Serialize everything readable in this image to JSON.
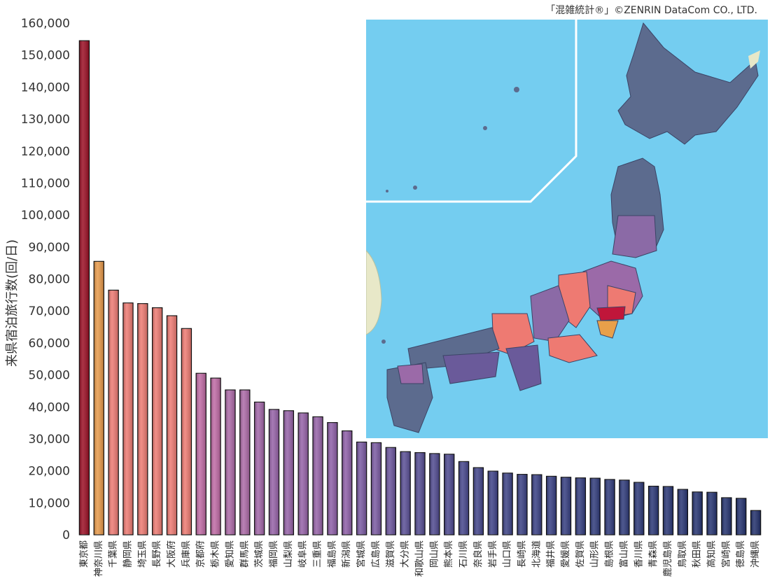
{
  "copyright": "「混雑統計®」©ZENRIN DataCom CO., LTD.",
  "chart_data": {
    "type": "bar",
    "ylabel": "来県宿泊旅行数(回/日)",
    "ylim": [
      0,
      160000
    ],
    "yticks": [
      0,
      10000,
      20000,
      30000,
      40000,
      50000,
      60000,
      70000,
      80000,
      90000,
      100000,
      110000,
      120000,
      130000,
      140000,
      150000,
      160000
    ],
    "ytick_labels": [
      "0",
      "10,000",
      "20,000",
      "30,000",
      "40,000",
      "50,000",
      "60,000",
      "70,000",
      "80,000",
      "90,000",
      "100,000",
      "110,000",
      "120,000",
      "130,000",
      "140,000",
      "150,000",
      "160,000"
    ],
    "categories": [
      "東京都",
      "神奈川県",
      "千葉県",
      "静岡県",
      "埼玉県",
      "長野県",
      "大阪府",
      "兵庫県",
      "京都府",
      "栃木県",
      "愛知県",
      "群馬県",
      "茨城県",
      "福岡県",
      "山梨県",
      "岐阜県",
      "三重県",
      "福島県",
      "新潟県",
      "宮城県",
      "広島県",
      "滋賀県",
      "大分県",
      "和歌山県",
      "岡山県",
      "熊本県",
      "石川県",
      "奈良県",
      "岩手県",
      "山口県",
      "長崎県",
      "北海道",
      "福井県",
      "愛媛県",
      "佐賀県",
      "山形県",
      "島根県",
      "富山県",
      "香川県",
      "青森県",
      "鹿児島県",
      "鳥取県",
      "秋田県",
      "高知県",
      "宮崎県",
      "徳島県",
      "沖縄県"
    ],
    "values": [
      154500,
      85500,
      76500,
      72500,
      72300,
      71000,
      68500,
      64500,
      50500,
      49000,
      45300,
      45300,
      41500,
      39200,
      38800,
      38100,
      36900,
      35100,
      32500,
      29000,
      28800,
      27300,
      26000,
      25700,
      25400,
      25200,
      22900,
      21000,
      19900,
      19300,
      18900,
      18800,
      18300,
      18000,
      17800,
      17700,
      17300,
      17100,
      16400,
      15200,
      15100,
      14200,
      13400,
      13300,
      11600,
      11400,
      7600
    ],
    "colors": [
      "#9b0e24",
      "#e89a4a",
      "#ee7a72",
      "#ee7a72",
      "#ee7a72",
      "#ee7a72",
      "#ee7a72",
      "#ee7a72",
      "#c06aa5",
      "#c06aa5",
      "#ad6aa8",
      "#ad6aa8",
      "#a266a8",
      "#9662a8",
      "#9662a8",
      "#9662a8",
      "#9662a8",
      "#8e5ea8",
      "#8e5ea8",
      "#7a5aa2",
      "#7a5aa2",
      "#6a549c",
      "#5a4f96",
      "#544c92",
      "#504a90",
      "#4c488e",
      "#46468c",
      "#42448a",
      "#3e4288",
      "#3c4286",
      "#3a4084",
      "#383f84",
      "#363e82",
      "#343d80",
      "#323c7e",
      "#303b7c",
      "#2f3a7b",
      "#2e3a7a",
      "#2c3878",
      "#2a3776",
      "#293675",
      "#283574",
      "#263472",
      "#253371",
      "#24326f",
      "#23316e",
      "#22306c"
    ],
    "grid": false,
    "legend": "none"
  },
  "inset_map": {
    "name": "japan-prefecture-map",
    "sea_color": "#74cdf0",
    "land_color": "#5a6a8c",
    "divider_color": "#ffffff"
  }
}
